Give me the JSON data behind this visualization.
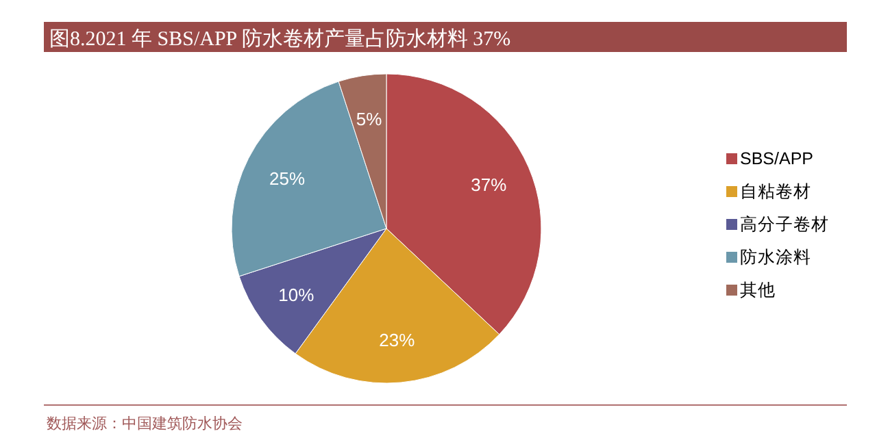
{
  "chart_data": {
    "type": "pie",
    "title": "图8.2021 年 SBS/APP 防水卷材产量占防水材料 37%",
    "categories": [
      "SBS/APP",
      "自粘卷材",
      "高分子卷材",
      "防水涂料",
      "其他"
    ],
    "values": [
      37,
      23,
      10,
      25,
      5
    ],
    "colors": [
      "#b5484a",
      "#dca02a",
      "#5b5b95",
      "#6b98ab",
      "#a16a5b"
    ],
    "value_labels": [
      "37%",
      "23%",
      "10%",
      "25%",
      "5%"
    ],
    "legend": "right",
    "annotations": [
      "数据来源：中国建筑防水协会"
    ]
  }
}
